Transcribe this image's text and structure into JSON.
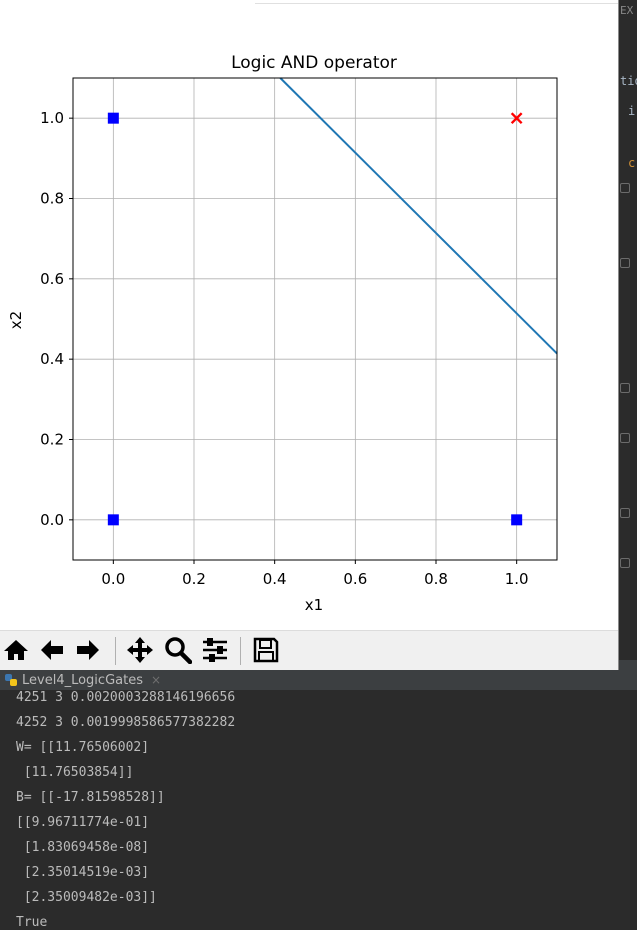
{
  "ide_fragments": [
    "EX",
    "tio",
    "i",
    "c"
  ],
  "run_panel": {
    "tab_label": "Level4_LogicGates",
    "close_glyph": "×",
    "console_lines": [
      "4251 3 0.0020003288146196656",
      "4252 3 0.0019998586577382282",
      "W= [[11.76506002]",
      " [11.76503854]]",
      "B= [[-17.81598528]]",
      "[[9.96711774e-01]",
      " [1.83069458e-08]",
      " [2.35014519e-03]",
      " [2.35009482e-03]]",
      "True"
    ]
  },
  "toolbar": {
    "icons": [
      "home-icon",
      "back-arrow-icon",
      "forward-arrow-icon",
      "pan-icon",
      "zoom-icon",
      "configure-subplots-icon",
      "save-icon"
    ]
  },
  "chart_data": {
    "type": "scatter",
    "title": "Logic AND operator",
    "xlabel": "x1",
    "ylabel": "x2",
    "xlim": [
      -0.1,
      1.1
    ],
    "ylim": [
      -0.1,
      1.1
    ],
    "xticks": [
      0.0,
      0.2,
      0.4,
      0.6,
      0.8,
      1.0
    ],
    "yticks": [
      0.0,
      0.2,
      0.4,
      0.6,
      0.8,
      1.0
    ],
    "xtick_labels": [
      "0.0",
      "0.2",
      "0.4",
      "0.6",
      "0.8",
      "1.0"
    ],
    "ytick_labels": [
      "0.0",
      "0.2",
      "0.4",
      "0.6",
      "0.8",
      "1.0"
    ],
    "grid": true,
    "points": [
      {
        "x": 0,
        "y": 0,
        "marker": "square",
        "color": "#0000ff"
      },
      {
        "x": 0,
        "y": 1,
        "marker": "square",
        "color": "#0000ff"
      },
      {
        "x": 1,
        "y": 0,
        "marker": "square",
        "color": "#0000ff"
      },
      {
        "x": 1,
        "y": 1,
        "marker": "x",
        "color": "#ff0000"
      }
    ],
    "line": {
      "points": [
        [
          0.414,
          1.1
        ],
        [
          1.1,
          0.414
        ]
      ],
      "color": "#1f77b4"
    }
  },
  "colors": {
    "console_bg": "#2b2b2b",
    "console_text": "#bbbbbb",
    "line": "#1f77b4"
  }
}
